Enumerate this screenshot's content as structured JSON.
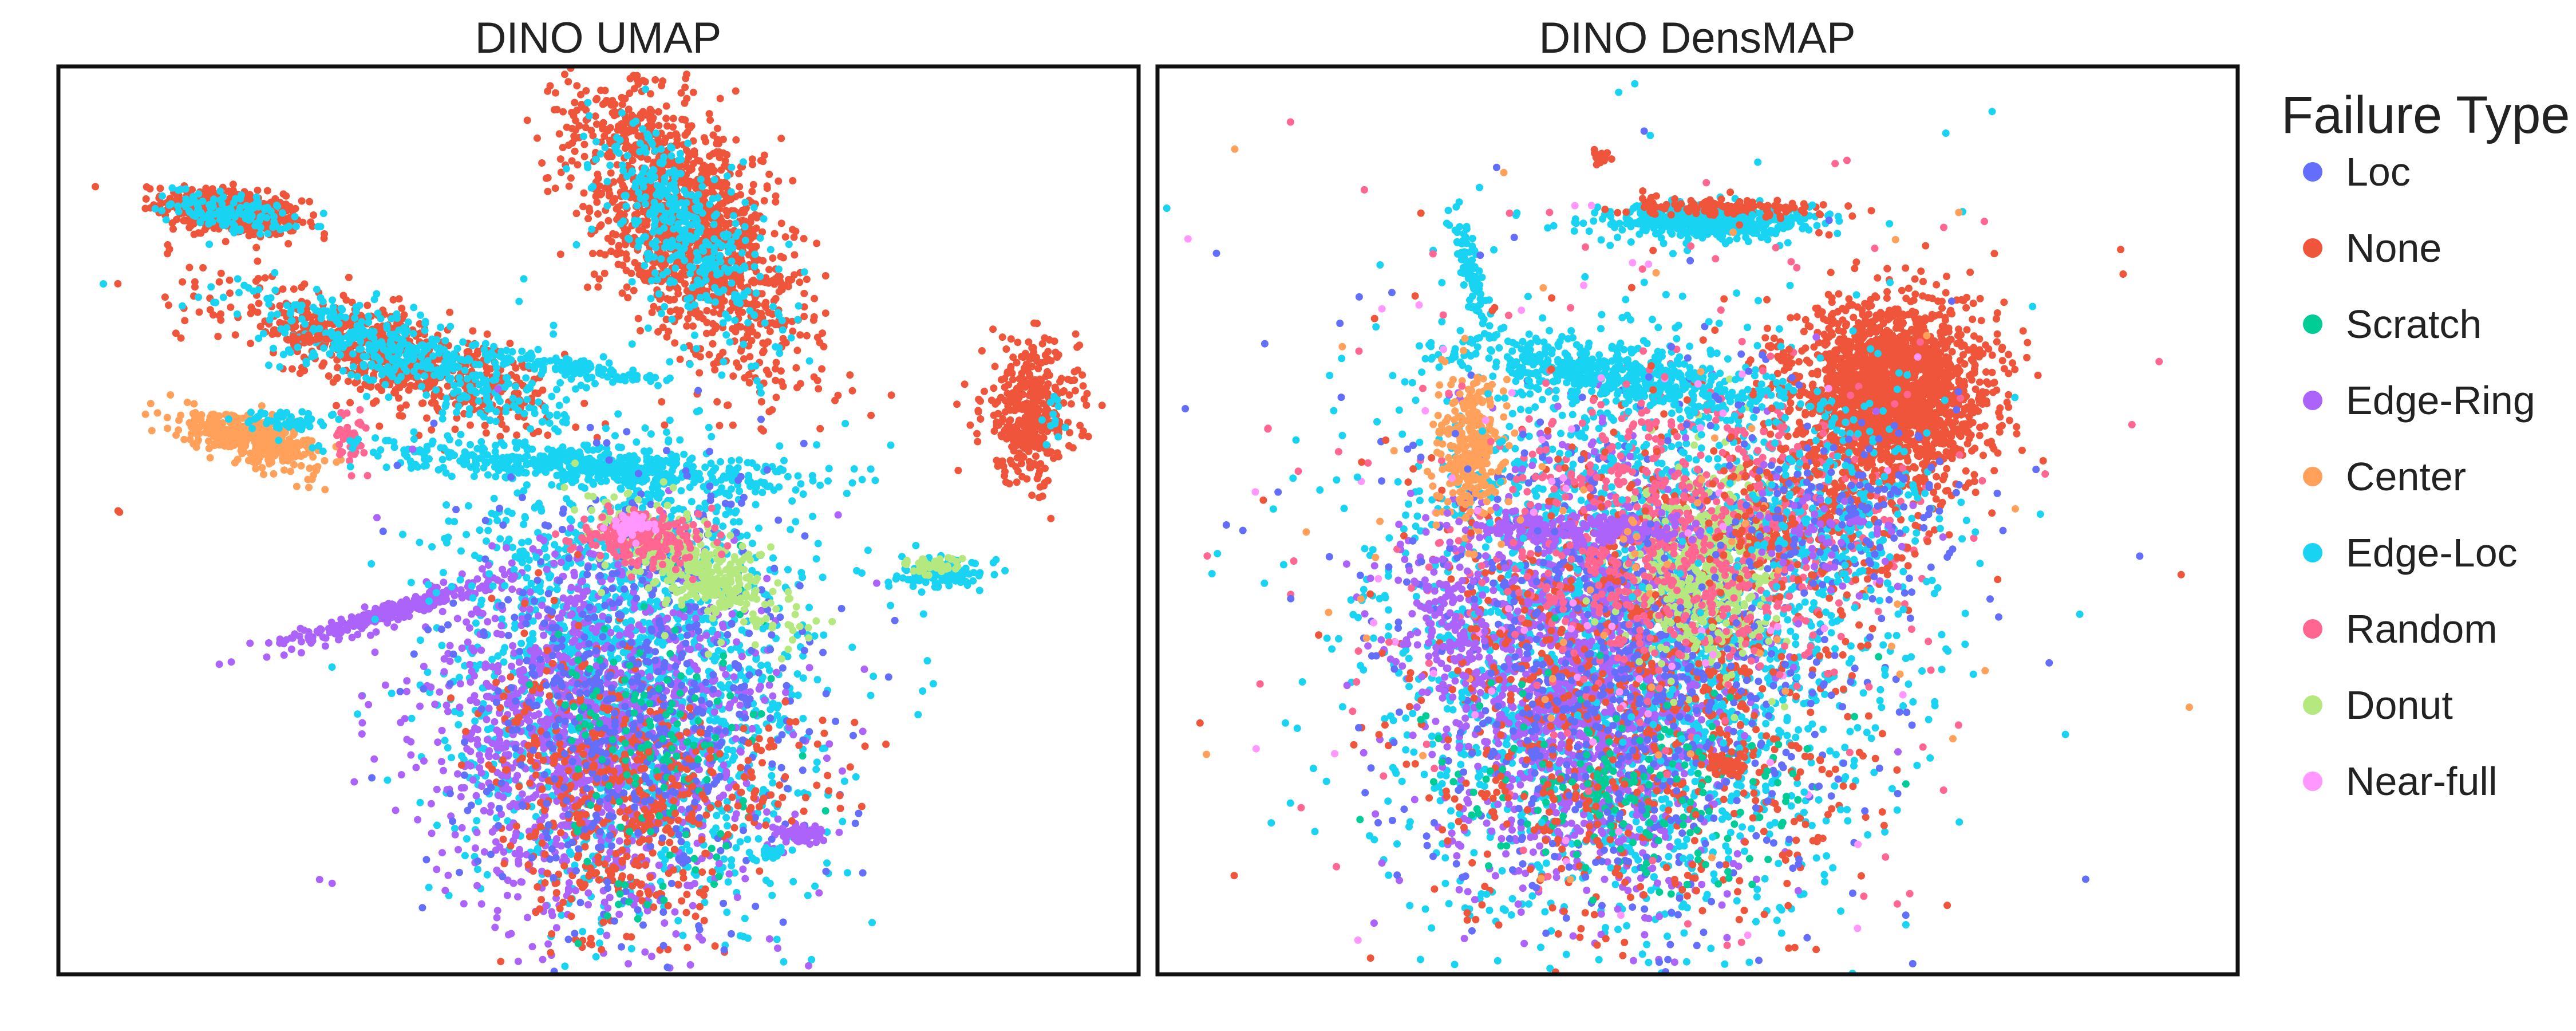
{
  "chart_data": [
    {
      "type": "scatter",
      "title": "DINO UMAP",
      "xlabel": "",
      "ylabel": "",
      "axis_ticks": "none",
      "grid": false,
      "clusters": [
        {
          "series": "None",
          "x": 1.6,
          "y": 8.4,
          "sx": 0.32,
          "sy": 0.12,
          "n": 520,
          "angle": -10
        },
        {
          "series": "Edge-Loc",
          "x": 1.6,
          "y": 8.4,
          "sx": 0.28,
          "sy": 0.1,
          "n": 140,
          "angle": -10
        },
        {
          "series": "None",
          "x": 5.8,
          "y": 8.3,
          "sx": 0.38,
          "sy": 0.9,
          "n": 1400,
          "angle": 28
        },
        {
          "series": "Edge-Loc",
          "x": 5.8,
          "y": 8.2,
          "sx": 0.3,
          "sy": 0.7,
          "n": 380,
          "angle": 28
        },
        {
          "series": "None",
          "x": 9.0,
          "y": 6.2,
          "sx": 0.22,
          "sy": 0.38,
          "n": 380,
          "angle": 0
        },
        {
          "series": "Edge-Loc",
          "x": 9.2,
          "y": 6.1,
          "sx": 0.06,
          "sy": 0.1,
          "n": 12,
          "angle": 0
        },
        {
          "series": "None",
          "x": 3.1,
          "y": 6.8,
          "sx": 0.8,
          "sy": 0.22,
          "n": 700,
          "angle": -22
        },
        {
          "series": "Edge-Loc",
          "x": 3.2,
          "y": 6.8,
          "sx": 0.8,
          "sy": 0.2,
          "n": 420,
          "angle": -22
        },
        {
          "series": "Edge-Loc",
          "x": 4.7,
          "y": 6.7,
          "sx": 0.5,
          "sy": 0.05,
          "n": 120,
          "angle": -10
        },
        {
          "series": "Center",
          "x": 1.8,
          "y": 5.9,
          "sx": 0.35,
          "sy": 0.12,
          "n": 380,
          "angle": -20
        },
        {
          "series": "Random",
          "x": 2.7,
          "y": 5.9,
          "sx": 0.08,
          "sy": 0.15,
          "n": 40,
          "angle": 0
        },
        {
          "series": "Edge-Loc",
          "x": 2.1,
          "y": 6.1,
          "sx": 0.2,
          "sy": 0.06,
          "n": 50,
          "angle": 0
        },
        {
          "series": "Edge-Ring",
          "x": 3.1,
          "y": 4.0,
          "sx": 0.55,
          "sy": 0.06,
          "n": 260,
          "angle": 20
        },
        {
          "series": "Edge-Loc",
          "x": 4.9,
          "y": 5.6,
          "sx": 0.9,
          "sy": 0.1,
          "n": 520,
          "angle": -5
        },
        {
          "series": "Edge-Loc",
          "x": 5.3,
          "y": 3.3,
          "sx": 0.85,
          "sy": 1.3,
          "n": 1800,
          "angle": 0
        },
        {
          "series": "Edge-Ring",
          "x": 5.0,
          "y": 2.6,
          "sx": 0.8,
          "sy": 1.0,
          "n": 1300,
          "angle": 0
        },
        {
          "series": "None",
          "x": 5.1,
          "y": 2.0,
          "sx": 0.5,
          "sy": 0.8,
          "n": 500,
          "angle": 15
        },
        {
          "series": "Loc",
          "x": 5.4,
          "y": 3.0,
          "sx": 0.8,
          "sy": 1.3,
          "n": 600,
          "angle": 0
        },
        {
          "series": "Scratch",
          "x": 5.6,
          "y": 2.4,
          "sx": 0.5,
          "sy": 0.9,
          "n": 150,
          "angle": 0
        },
        {
          "series": "Donut",
          "x": 5.9,
          "y": 4.5,
          "sx": 0.5,
          "sy": 0.2,
          "n": 400,
          "angle": -35
        },
        {
          "series": "Random",
          "x": 5.4,
          "y": 4.8,
          "sx": 0.3,
          "sy": 0.15,
          "n": 220,
          "angle": 0
        },
        {
          "series": "Near-full",
          "x": 5.3,
          "y": 4.95,
          "sx": 0.1,
          "sy": 0.06,
          "n": 60,
          "angle": 0
        },
        {
          "series": "Edge-Loc",
          "x": 8.2,
          "y": 4.4,
          "sx": 0.2,
          "sy": 0.07,
          "n": 110,
          "angle": 0
        },
        {
          "series": "Donut",
          "x": 8.1,
          "y": 4.5,
          "sx": 0.12,
          "sy": 0.05,
          "n": 50,
          "angle": 0
        },
        {
          "series": "Edge-Ring",
          "x": 6.9,
          "y": 1.55,
          "sx": 0.13,
          "sy": 0.06,
          "n": 70,
          "angle": 0
        },
        {
          "series": "Edge-Loc",
          "x": 6.6,
          "y": 1.35,
          "sx": 0.08,
          "sy": 0.04,
          "n": 20,
          "angle": 20
        },
        {
          "series": "None",
          "x": 6.2,
          "y": 2.1,
          "sx": 0.6,
          "sy": 0.3,
          "n": 90,
          "angle": 20
        },
        {
          "series": "None",
          "x": 0.55,
          "y": 5.1,
          "sx": 0.01,
          "sy": 0.01,
          "n": 2,
          "angle": 0
        },
        {
          "series": "None",
          "x": 2.3,
          "y": 7.0,
          "sx": 0.08,
          "sy": 0.02,
          "n": 14,
          "angle": 0
        },
        {
          "series": "Edge-Loc",
          "x": 4.3,
          "y": 4.6,
          "sx": 0.06,
          "sy": 0.03,
          "n": 10,
          "angle": 0
        }
      ]
    },
    {
      "type": "scatter",
      "title": "DINO DensMAP",
      "xlabel": "",
      "ylabel": "",
      "axis_ticks": "none",
      "grid": false,
      "clusters": [
        {
          "series": "None",
          "x": 6.8,
          "y": 6.4,
          "sx": 0.45,
          "sy": 0.5,
          "n": 2000,
          "angle": 0
        },
        {
          "series": "Edge-Loc",
          "x": 5.1,
          "y": 8.3,
          "sx": 0.5,
          "sy": 0.09,
          "n": 520,
          "angle": 0
        },
        {
          "series": "None",
          "x": 5.3,
          "y": 8.45,
          "sx": 0.5,
          "sy": 0.05,
          "n": 120,
          "angle": 0
        },
        {
          "series": "Edge-Loc",
          "x": 2.9,
          "y": 7.7,
          "sx": 0.05,
          "sy": 0.35,
          "n": 90,
          "angle": 10
        },
        {
          "series": "None",
          "x": 4.1,
          "y": 9.0,
          "sx": 0.04,
          "sy": 0.04,
          "n": 20,
          "angle": 0
        },
        {
          "series": "Edge-Loc",
          "x": 4.4,
          "y": 3.8,
          "sx": 1.1,
          "sy": 1.5,
          "n": 2600,
          "angle": 0
        },
        {
          "series": "Edge-Ring",
          "x": 3.9,
          "y": 3.2,
          "sx": 0.7,
          "sy": 1.2,
          "n": 1400,
          "angle": 0
        },
        {
          "series": "None",
          "x": 4.5,
          "y": 3.2,
          "sx": 1.0,
          "sy": 1.4,
          "n": 900,
          "angle": 0
        },
        {
          "series": "Loc",
          "x": 4.4,
          "y": 3.3,
          "sx": 1.0,
          "sy": 1.4,
          "n": 700,
          "angle": 0
        },
        {
          "series": "Donut",
          "x": 5.1,
          "y": 4.5,
          "sx": 0.35,
          "sy": 0.55,
          "n": 520,
          "angle": 0
        },
        {
          "series": "Random",
          "x": 4.9,
          "y": 4.9,
          "sx": 0.9,
          "sy": 0.7,
          "n": 700,
          "angle": 0
        },
        {
          "series": "Edge-Loc",
          "x": 4.3,
          "y": 6.6,
          "sx": 0.9,
          "sy": 0.15,
          "n": 520,
          "angle": -10
        },
        {
          "series": "Center",
          "x": 2.9,
          "y": 5.8,
          "sx": 0.15,
          "sy": 0.4,
          "n": 300,
          "angle": 0
        },
        {
          "series": "Edge-Ring",
          "x": 3.9,
          "y": 4.9,
          "sx": 0.55,
          "sy": 0.08,
          "n": 220,
          "angle": 0
        },
        {
          "series": "Scratch",
          "x": 4.4,
          "y": 2.0,
          "sx": 0.8,
          "sy": 0.6,
          "n": 200,
          "angle": 0
        },
        {
          "series": "Near-full",
          "x": 4.2,
          "y": 4.2,
          "sx": 1.7,
          "sy": 2.0,
          "n": 90,
          "angle": 0
        },
        {
          "series": "Random",
          "x": 4.6,
          "y": 4.8,
          "sx": 1.8,
          "sy": 2.1,
          "n": 150,
          "angle": 0
        },
        {
          "series": "Loc",
          "x": 4.5,
          "y": 4.8,
          "sx": 1.8,
          "sy": 2.0,
          "n": 120,
          "angle": 0
        },
        {
          "series": "Edge-Loc",
          "x": 4.6,
          "y": 4.8,
          "sx": 1.9,
          "sy": 2.1,
          "n": 120,
          "angle": 0
        },
        {
          "series": "Center",
          "x": 4.3,
          "y": 4.8,
          "sx": 1.8,
          "sy": 2.0,
          "n": 70,
          "angle": 0
        },
        {
          "series": "None",
          "x": 4.7,
          "y": 4.8,
          "sx": 1.9,
          "sy": 2.1,
          "n": 90,
          "angle": 0
        },
        {
          "series": "Edge-Ring",
          "x": 2.7,
          "y": 3.9,
          "sx": 0.25,
          "sy": 0.4,
          "n": 100,
          "angle": 0
        },
        {
          "series": "None",
          "x": 3.5,
          "y": 1.9,
          "sx": 0.5,
          "sy": 0.3,
          "n": 40,
          "angle": 0
        },
        {
          "series": "None",
          "x": 5.3,
          "y": 2.3,
          "sx": 0.12,
          "sy": 0.06,
          "n": 40,
          "angle": 0
        },
        {
          "series": "None",
          "x": 6.1,
          "y": 5.0,
          "sx": 0.5,
          "sy": 0.5,
          "n": 220,
          "angle": 0
        },
        {
          "series": "Edge-Loc",
          "x": 6.2,
          "y": 5.0,
          "sx": 0.5,
          "sy": 0.5,
          "n": 180,
          "angle": 0
        },
        {
          "series": "Loc",
          "x": 6.5,
          "y": 5.1,
          "sx": 0.5,
          "sy": 0.4,
          "n": 120,
          "angle": 0
        },
        {
          "series": "Edge-Ring",
          "x": 6.2,
          "y": 4.8,
          "sx": 0.4,
          "sy": 0.4,
          "n": 60,
          "angle": 0
        },
        {
          "series": "Random",
          "x": 1.0,
          "y": 6.0,
          "sx": 0.02,
          "sy": 0.02,
          "n": 2,
          "angle": 0
        },
        {
          "series": "Random",
          "x": 0.45,
          "y": 4.6,
          "sx": 0.01,
          "sy": 0.01,
          "n": 1,
          "angle": 0
        },
        {
          "series": "None",
          "x": 9.5,
          "y": 4.4,
          "sx": 0.01,
          "sy": 0.01,
          "n": 1,
          "angle": 0
        },
        {
          "series": "Random",
          "x": 1.2,
          "y": 9.4,
          "sx": 0.01,
          "sy": 0.01,
          "n": 1,
          "angle": 0
        },
        {
          "series": "Random",
          "x": 5.4,
          "y": 0.35,
          "sx": 0.01,
          "sy": 0.01,
          "n": 1,
          "angle": 0
        }
      ]
    }
  ],
  "legend": {
    "title": "Failure Type",
    "placement": "right",
    "items": [
      {
        "label": "Loc",
        "color": "#636EFA"
      },
      {
        "label": "None",
        "color": "#EF553B"
      },
      {
        "label": "Scratch",
        "color": "#00CC96"
      },
      {
        "label": "Edge-Ring",
        "color": "#AB63FA"
      },
      {
        "label": "Center",
        "color": "#FFA15A"
      },
      {
        "label": "Edge-Loc",
        "color": "#19D3F3"
      },
      {
        "label": "Random",
        "color": "#FF6692"
      },
      {
        "label": "Donut",
        "color": "#B6E880"
      },
      {
        "label": "Near-full",
        "color": "#FF97FF"
      }
    ]
  }
}
